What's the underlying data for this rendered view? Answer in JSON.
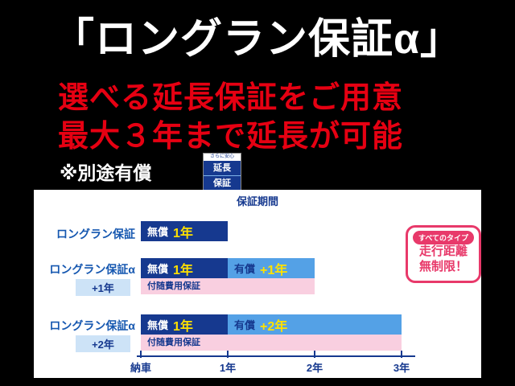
{
  "header": {
    "title": "「ロングラン保証α」",
    "line1": "選べる延長保証をご用意",
    "line2": "最大３年まで延長が可能",
    "note": "※別途有償"
  },
  "stamp": {
    "top": "さらに安心",
    "mid": "延長",
    "bottom": "保証"
  },
  "chart_data": {
    "type": "bar",
    "variant": "gantt-timeline",
    "title": "保証期間",
    "x_ticks": [
      "納車",
      "1年",
      "2年",
      "3年"
    ],
    "x_range_years": [
      0,
      3
    ],
    "rows": [
      {
        "label": "ロングラン保証",
        "plan_extra": "",
        "segments": [
          {
            "kind": "free",
            "prefix": "無償",
            "amount": "1年",
            "from": 0,
            "to": 1
          }
        ],
        "sub_bar": null
      },
      {
        "label": "ロングラン保証α",
        "plan_extra": "+1年",
        "segments": [
          {
            "kind": "free",
            "prefix": "無償",
            "amount": "1年",
            "from": 0,
            "to": 1
          },
          {
            "kind": "paid",
            "prefix": "有償",
            "amount": "+1年",
            "from": 1,
            "to": 2
          }
        ],
        "sub_bar": {
          "label": "付随費用保証",
          "from": 0,
          "to": 2
        }
      },
      {
        "label": "ロングラン保証α",
        "plan_extra": "+2年",
        "segments": [
          {
            "kind": "free",
            "prefix": "無償",
            "amount": "1年",
            "from": 0,
            "to": 1
          },
          {
            "kind": "paid",
            "prefix": "有償",
            "amount": "+2年",
            "from": 1,
            "to": 3
          }
        ],
        "sub_bar": {
          "label": "付随費用保証",
          "from": 0,
          "to": 3
        }
      }
    ],
    "badge": {
      "pill": "すべてのタイプ",
      "line1": "走行距離",
      "line2": "無制限！"
    }
  },
  "colors": {
    "red": "#e60012",
    "navy": "#16398f",
    "light_blue": "#54a1e6",
    "pink": "#f9cfe0",
    "label_blue": "#1557b0",
    "magenta": "#e8396a",
    "yellow": "#ffe100"
  }
}
